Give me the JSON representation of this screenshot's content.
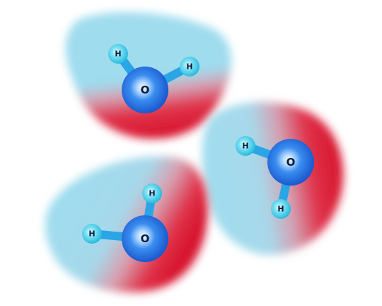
{
  "diagram": {
    "colors": {
      "positive_region": "#9fdcee",
      "negative_region": "#de1e36",
      "oxygen": "#1d6fe0",
      "oxygen_highlight": "#f4f9ff",
      "hydrogen": "#33cbe6",
      "bond": "#2aa5e6",
      "atom_label": "#0b1a3a"
    },
    "molecules": [
      {
        "oxygen_label": "O",
        "hydrogen_labels": [
          "H",
          "H"
        ]
      },
      {
        "oxygen_label": "O",
        "hydrogen_labels": [
          "H",
          "H"
        ]
      },
      {
        "oxygen_label": "O",
        "hydrogen_labels": [
          "H",
          "H"
        ]
      }
    ]
  }
}
